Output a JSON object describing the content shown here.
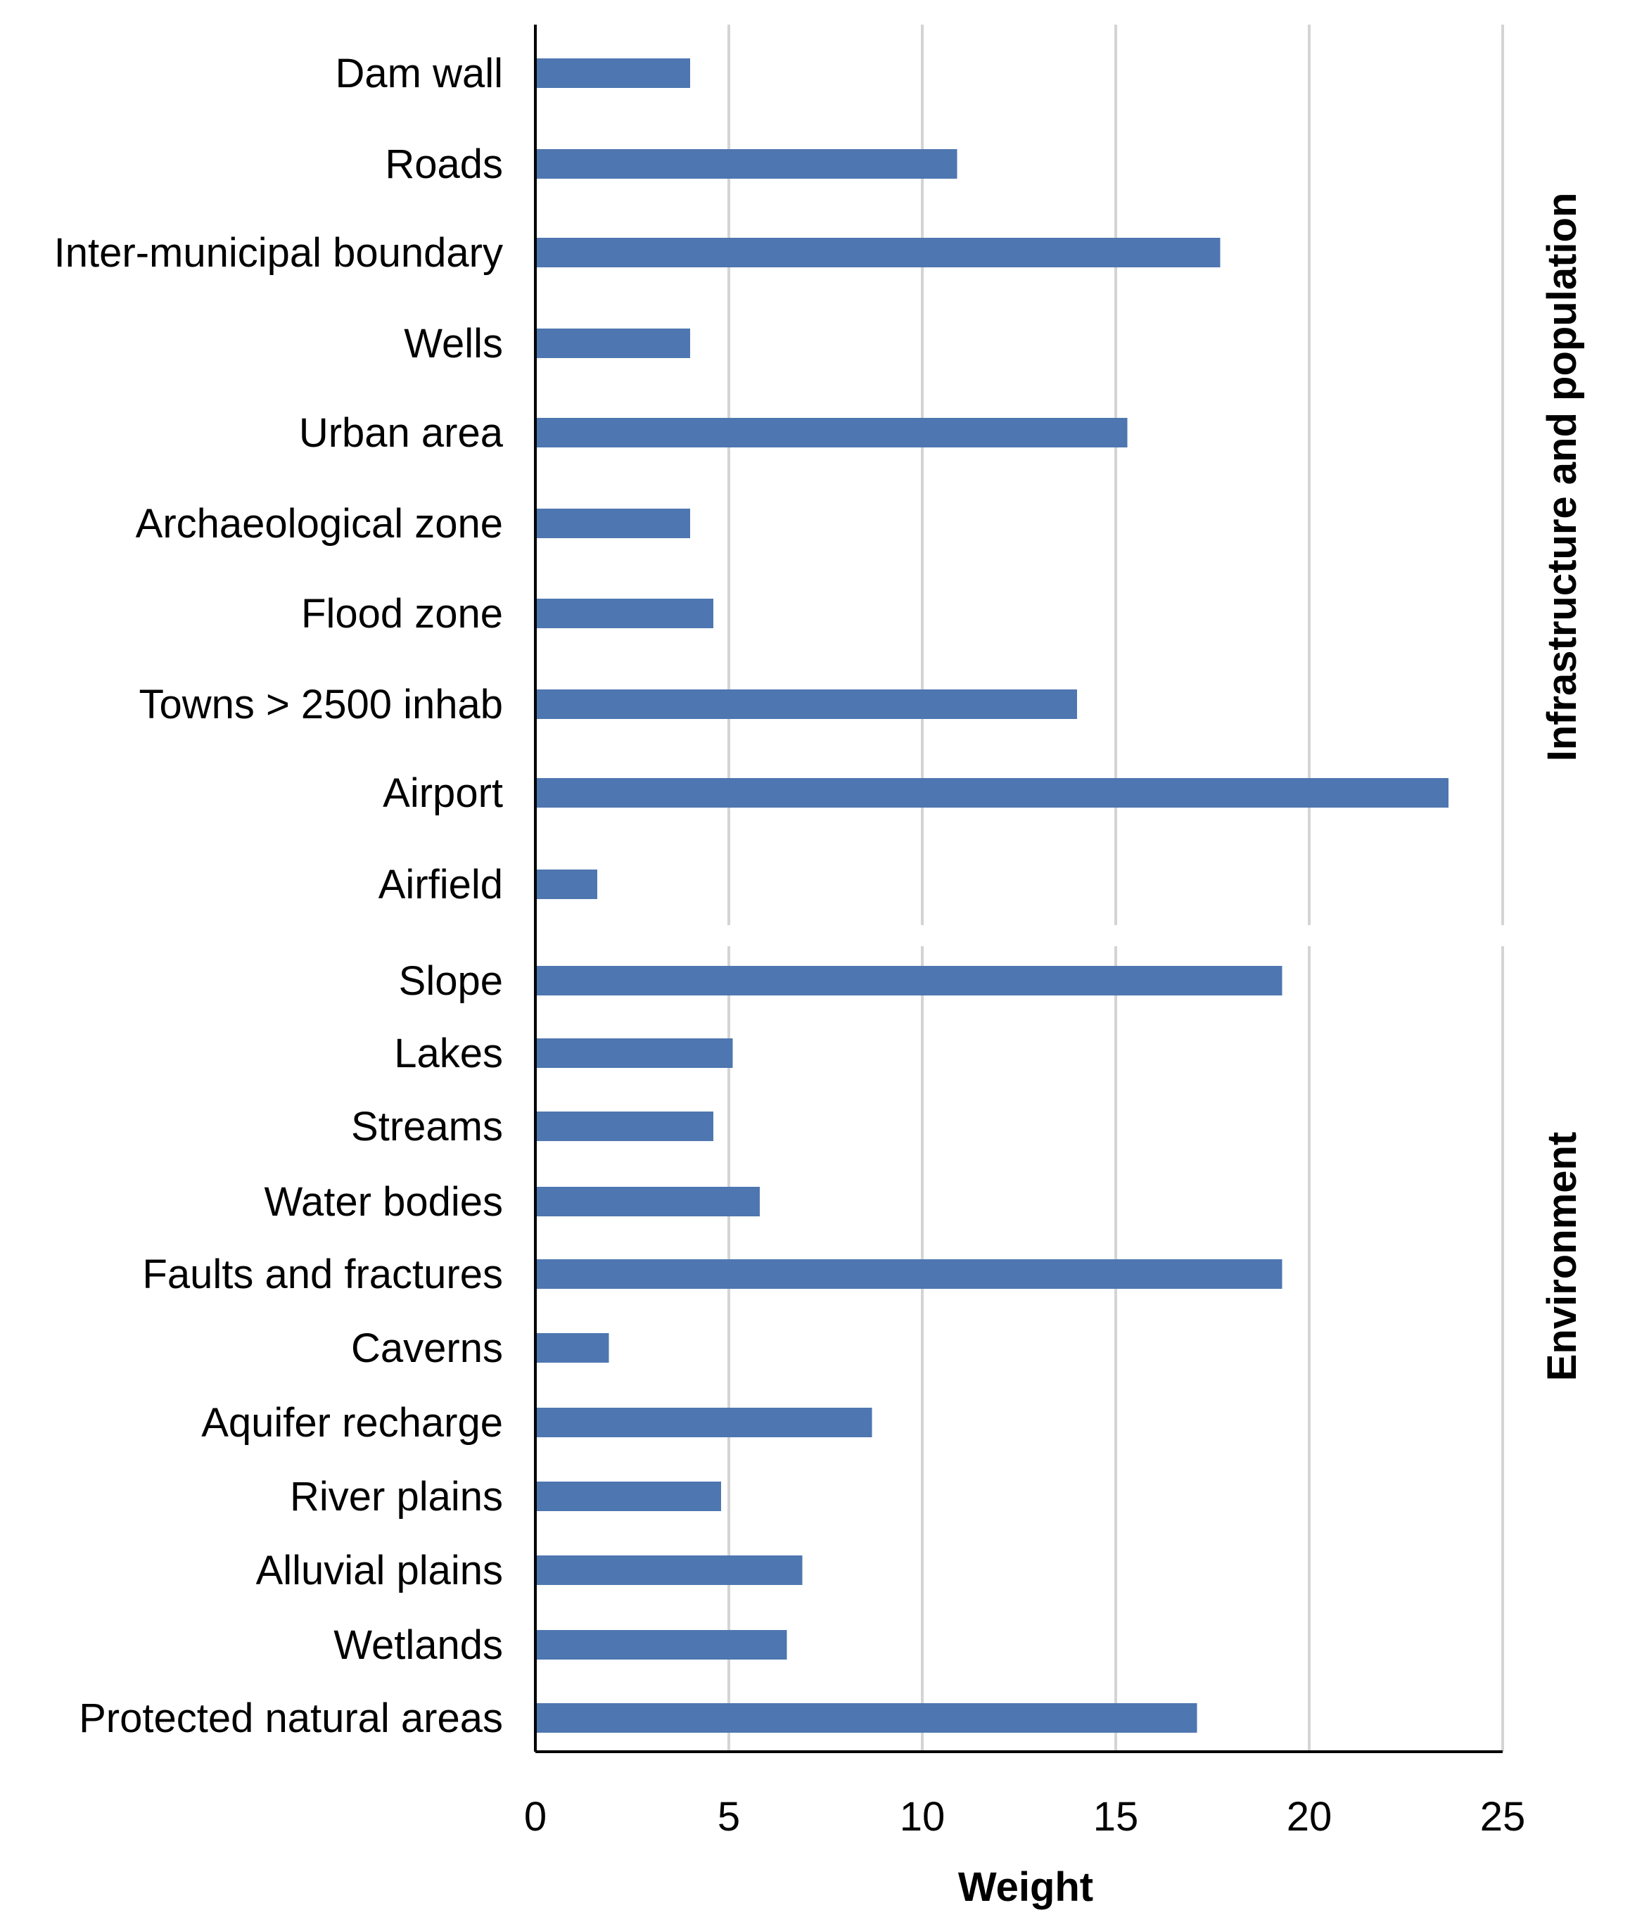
{
  "chart_data": {
    "type": "bar",
    "orientation": "horizontal",
    "xlabel": "Weight",
    "xlim": [
      0,
      25
    ],
    "xticks": [
      0,
      5,
      10,
      15,
      20,
      25
    ],
    "grid": true,
    "bar_color": "#4e76b0",
    "groups": [
      {
        "name": "Infrastructure and population",
        "categories": [
          "Dam wall",
          "Roads",
          "Inter-municipal boundary",
          "Wells",
          "Urban area",
          "Archaeological zone",
          "Flood zone",
          "Towns > 2500 inhab",
          "Airport",
          "Airfield"
        ],
        "values": [
          4.0,
          10.9,
          17.7,
          4.0,
          15.3,
          4.0,
          4.6,
          14.0,
          23.6,
          1.6
        ]
      },
      {
        "name": "Environment",
        "categories": [
          "Slope",
          "Lakes",
          "Streams",
          "Water bodies",
          "Faults and fractures",
          "Caverns",
          "Aquifer recharge",
          "River plains",
          "Alluvial plains",
          "Wetlands",
          "Protected natural areas"
        ],
        "values": [
          19.3,
          5.1,
          4.6,
          5.8,
          19.3,
          1.9,
          8.7,
          4.8,
          6.9,
          6.5,
          17.1
        ]
      }
    ]
  }
}
